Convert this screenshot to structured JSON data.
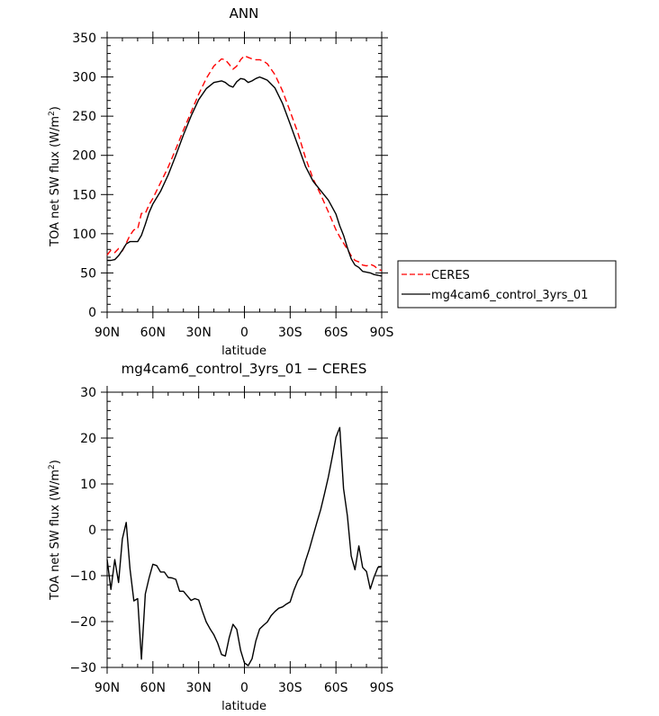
{
  "chart_data": [
    {
      "type": "line",
      "title": "ANN",
      "xlabel": "latitude",
      "ylabel": "TOA net SW flux (W/m²)",
      "ylabel_main": "TOA net SW flux (W/m",
      "ylabel_sup": "2",
      "ylabel_end": ")",
      "xlim": [
        90,
        -90
      ],
      "ylim": [
        0,
        350
      ],
      "xticks": [
        {
          "value": 90,
          "label": "90N"
        },
        {
          "value": 60,
          "label": "60N"
        },
        {
          "value": 30,
          "label": "30N"
        },
        {
          "value": 0,
          "label": "0"
        },
        {
          "value": -30,
          "label": "30S"
        },
        {
          "value": -60,
          "label": "60S"
        },
        {
          "value": -90,
          "label": "90S"
        }
      ],
      "yticks": [
        0,
        50,
        100,
        150,
        200,
        250,
        300,
        350
      ],
      "legend": "right, outside plot",
      "series": [
        {
          "name": "CERES",
          "color": "#ff0000",
          "dash": true,
          "x": [
            90,
            87.5,
            85,
            82.5,
            80,
            77.5,
            75,
            72.5,
            70,
            67.5,
            65,
            62.5,
            60,
            55,
            50,
            45,
            40,
            35,
            30,
            25,
            20,
            15,
            12.5,
            10,
            7.5,
            5,
            2.5,
            0,
            -2.5,
            -5,
            -7.5,
            -10,
            -12.5,
            -15,
            -20,
            -25,
            -30,
            -35,
            -40,
            -45,
            -50,
            -55,
            -60,
            -62.5,
            -65,
            -67.5,
            -70,
            -72.5,
            -75,
            -77.5,
            -80,
            -82.5,
            -85,
            -87.5,
            -90
          ],
          "y": [
            73,
            79,
            76,
            81,
            78,
            88,
            98,
            105,
            106,
            126,
            126,
            137,
            145,
            165,
            185,
            208,
            232,
            255,
            278,
            298,
            314,
            323,
            322,
            316,
            310,
            314,
            322,
            327,
            325,
            323,
            322,
            322,
            320,
            317,
            303,
            282,
            256,
            229,
            197,
            170,
            150,
            128,
            105,
            96,
            88,
            80,
            72,
            66,
            64,
            60,
            59,
            61,
            59,
            55,
            53
          ]
        },
        {
          "name": "mg4cam6_control_3yrs_01",
          "color": "#000000",
          "dash": false,
          "x": [
            90,
            87.5,
            85,
            82.5,
            80,
            77.5,
            75,
            72.5,
            70,
            67.5,
            65,
            62.5,
            60,
            55,
            50,
            45,
            40,
            35,
            30,
            25,
            20,
            15,
            12.5,
            10,
            7.5,
            5,
            2.5,
            0,
            -2.5,
            -5,
            -7.5,
            -10,
            -12.5,
            -15,
            -20,
            -25,
            -30,
            -35,
            -40,
            -45,
            -50,
            -55,
            -60,
            -62.5,
            -65,
            -67.5,
            -70,
            -72.5,
            -75,
            -77.5,
            -80,
            -82.5,
            -85,
            -87.5,
            -90
          ],
          "y": [
            66,
            66,
            67,
            72,
            79,
            87,
            90,
            90,
            90,
            98,
            112,
            127,
            138,
            154,
            175,
            200,
            226,
            250,
            271,
            285,
            293,
            295,
            293,
            289,
            287,
            294,
            298,
            297,
            293,
            295,
            298,
            300,
            298,
            296,
            286,
            266,
            240,
            213,
            186,
            167,
            155,
            143,
            125,
            110,
            98,
            82,
            68,
            60,
            57,
            52,
            51,
            50,
            48,
            47,
            46
          ]
        }
      ]
    },
    {
      "type": "line",
      "title": "mg4cam6_control_3yrs_01 − CERES",
      "xlabel": "latitude",
      "ylabel": "TOA net SW flux (W/m²)",
      "ylabel_main": "TOA net SW flux (W/m",
      "ylabel_sup": "2",
      "ylabel_end": ")",
      "xlim": [
        90,
        -90
      ],
      "ylim": [
        -30,
        30
      ],
      "xticks": [
        {
          "value": 90,
          "label": "90N"
        },
        {
          "value": 60,
          "label": "60N"
        },
        {
          "value": 30,
          "label": "30N"
        },
        {
          "value": 0,
          "label": "0"
        },
        {
          "value": -30,
          "label": "30S"
        },
        {
          "value": -60,
          "label": "60S"
        },
        {
          "value": -90,
          "label": "90S"
        }
      ],
      "yticks": [
        -30,
        -20,
        -10,
        0,
        10,
        20,
        30
      ],
      "series": [
        {
          "color": "#000000",
          "dash": false,
          "x": [
            90,
            87.5,
            85,
            82.5,
            80,
            77.5,
            75,
            72.5,
            70,
            67.5,
            65,
            62.5,
            60,
            57.5,
            55,
            52.5,
            50,
            47.5,
            45,
            42.5,
            40,
            37.5,
            35,
            32.5,
            30,
            27.5,
            25,
            22.5,
            20,
            17.5,
            15,
            12.5,
            10,
            7.5,
            5,
            2.5,
            0,
            -2.5,
            -5,
            -7.5,
            -10,
            -12.5,
            -15,
            -17.5,
            -20,
            -22.5,
            -25,
            -27.5,
            -30,
            -32.5,
            -35,
            -37.5,
            -40,
            -42.5,
            -45,
            -47.5,
            -50,
            -52.5,
            -55,
            -57.5,
            -60,
            -62.5,
            -65,
            -67.5,
            -70,
            -72.5,
            -75,
            -77.5,
            -80,
            -82.5,
            -85,
            -87.5,
            -90
          ],
          "y": [
            -6.5,
            -13,
            -6.5,
            -11.5,
            -2,
            1.6,
            -8.5,
            -15.5,
            -15,
            -28.2,
            -14,
            -10.5,
            -7.5,
            -7.8,
            -9.2,
            -9.2,
            -10.4,
            -10.5,
            -10.8,
            -13.4,
            -13.4,
            -14.4,
            -15.4,
            -15,
            -15.3,
            -17.8,
            -20.1,
            -21.6,
            -22.9,
            -24.7,
            -27.2,
            -27.5,
            -23.5,
            -20.6,
            -21.7,
            -26.3,
            -29,
            -29.6,
            -28.1,
            -24.2,
            -21.6,
            -20.8,
            -20.1,
            -18.7,
            -17.8,
            -17.1,
            -16.8,
            -16.2,
            -15.7,
            -13.1,
            -11.1,
            -9.8,
            -6.8,
            -4.3,
            -1.3,
            1.6,
            4.4,
            7.9,
            11.5,
            15.7,
            20.2,
            22.3,
            9,
            3,
            -5.7,
            -8.7,
            -3.5,
            -8.2,
            -9.1,
            -12.9,
            -10.3,
            -8.2,
            -8
          ]
        }
      ]
    }
  ],
  "legend": {
    "entries": [
      {
        "label": "CERES",
        "color": "#ff0000",
        "dash": true
      },
      {
        "label": "mg4cam6_control_3yrs_01",
        "color": "#000000",
        "dash": false
      }
    ]
  }
}
